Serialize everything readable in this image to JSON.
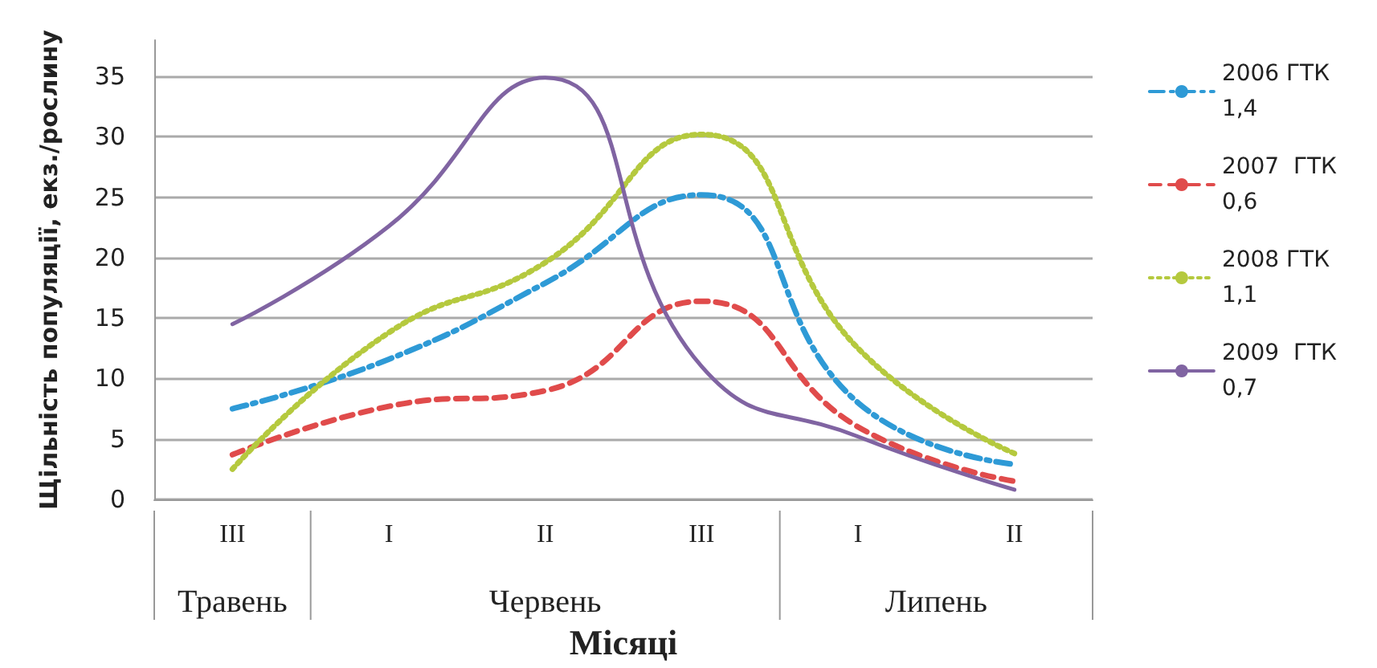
{
  "chart_data": {
    "type": "line",
    "xlabel": "Місяці",
    "ylabel": "Щільність популяції, екз./рослину",
    "categories": [
      "III",
      "I",
      "II",
      "III",
      "I",
      "II"
    ],
    "annotations": [
      "Травень",
      "Червень",
      "Липень"
    ],
    "series": [
      {
        "name": "2006 ГТК\n1,4",
        "color": "#2e9ad6",
        "line_style": "dashdot",
        "values": [
          7.5,
          11.6,
          17.9,
          25.2,
          8,
          2.9
        ]
      },
      {
        "name": "2007  ГТК\n0,6",
        "color": "#e04b4b",
        "line_style": "dashed",
        "values": [
          3.7,
          7.7,
          9,
          16.4,
          6,
          1.5
        ]
      },
      {
        "name": "2008 ГТК\n1,1",
        "color": "#b5c93e",
        "line_style": "dotted",
        "values": [
          2.5,
          13.8,
          19.6,
          30.2,
          12.5,
          3.8
        ]
      },
      {
        "name": "2009  ГТК\n0,7",
        "color": "#8064a2",
        "line_style": "solid",
        "values": [
          14.5,
          22.6,
          34.9,
          11,
          5.2,
          0.8
        ]
      }
    ],
    "ylim": [
      0,
      38
    ],
    "yticks": [
      0,
      5,
      10,
      15,
      20,
      25,
      30,
      35
    ],
    "grid": "y",
    "legend": "right",
    "marker": "none"
  }
}
